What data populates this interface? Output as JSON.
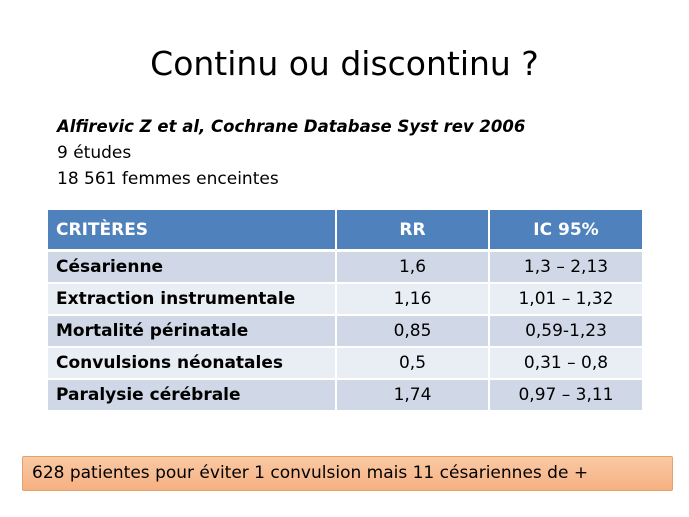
{
  "slide": {
    "title": "Continu ou discontinu ?",
    "citation": "Alfirevic Z et al, Cochrane Database Syst rev 2006",
    "studies": "9 études",
    "women": "18 561 femmes enceintes",
    "conclusion": "628 patientes pour éviter 1 convulsion mais 11 césariennes de +"
  },
  "table": {
    "headers": [
      "CRITÈRES",
      "RR",
      "IC 95%"
    ],
    "rows": [
      [
        "Césarienne",
        "1,6",
        "1,3 – 2,13"
      ],
      [
        "Extraction instrumentale",
        "1,16",
        "1,01 – 1,32"
      ],
      [
        "Mortalité périnatale",
        "0,85",
        "0,59-1,23"
      ],
      [
        "Convulsions néonatales",
        "0,5",
        "0,31 – 0,8"
      ],
      [
        "Paralysie cérébrale",
        "1,74",
        "0,97 – 3,11"
      ]
    ]
  },
  "colors": {
    "header_bg": "#4f81bd",
    "row_odd": "#d0d8e8",
    "row_even": "#e9edf4",
    "conclusion_bg": "#f6b183"
  }
}
